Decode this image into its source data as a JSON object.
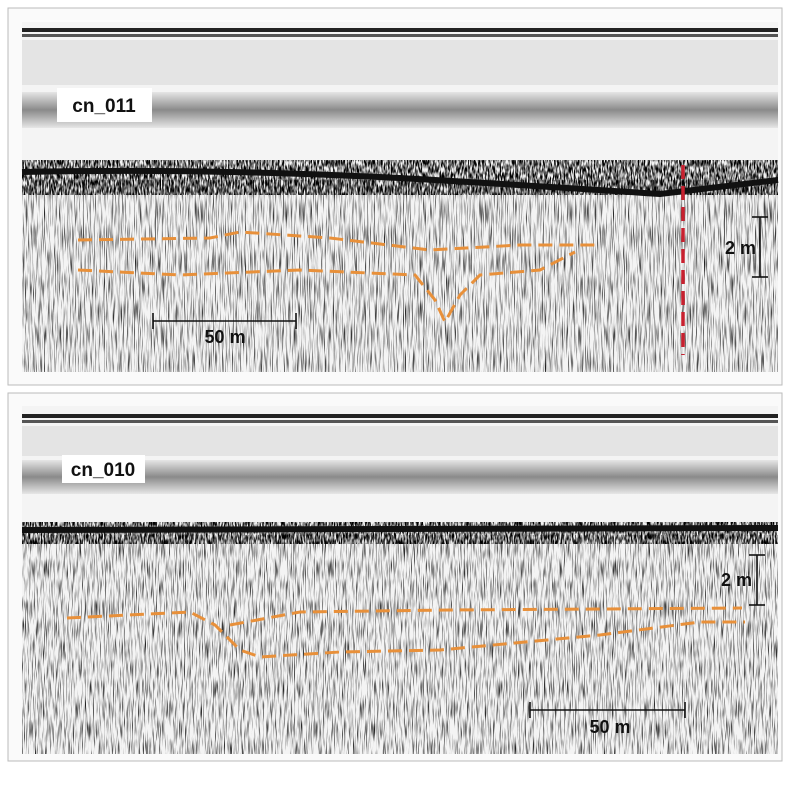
{
  "panels": [
    {
      "label": "cn_011",
      "horizontal_scale": "50 m",
      "vertical_scale": "2 m"
    },
    {
      "label": "cn_010",
      "horizontal_scale": "50 m",
      "vertical_scale": "2 m"
    }
  ]
}
